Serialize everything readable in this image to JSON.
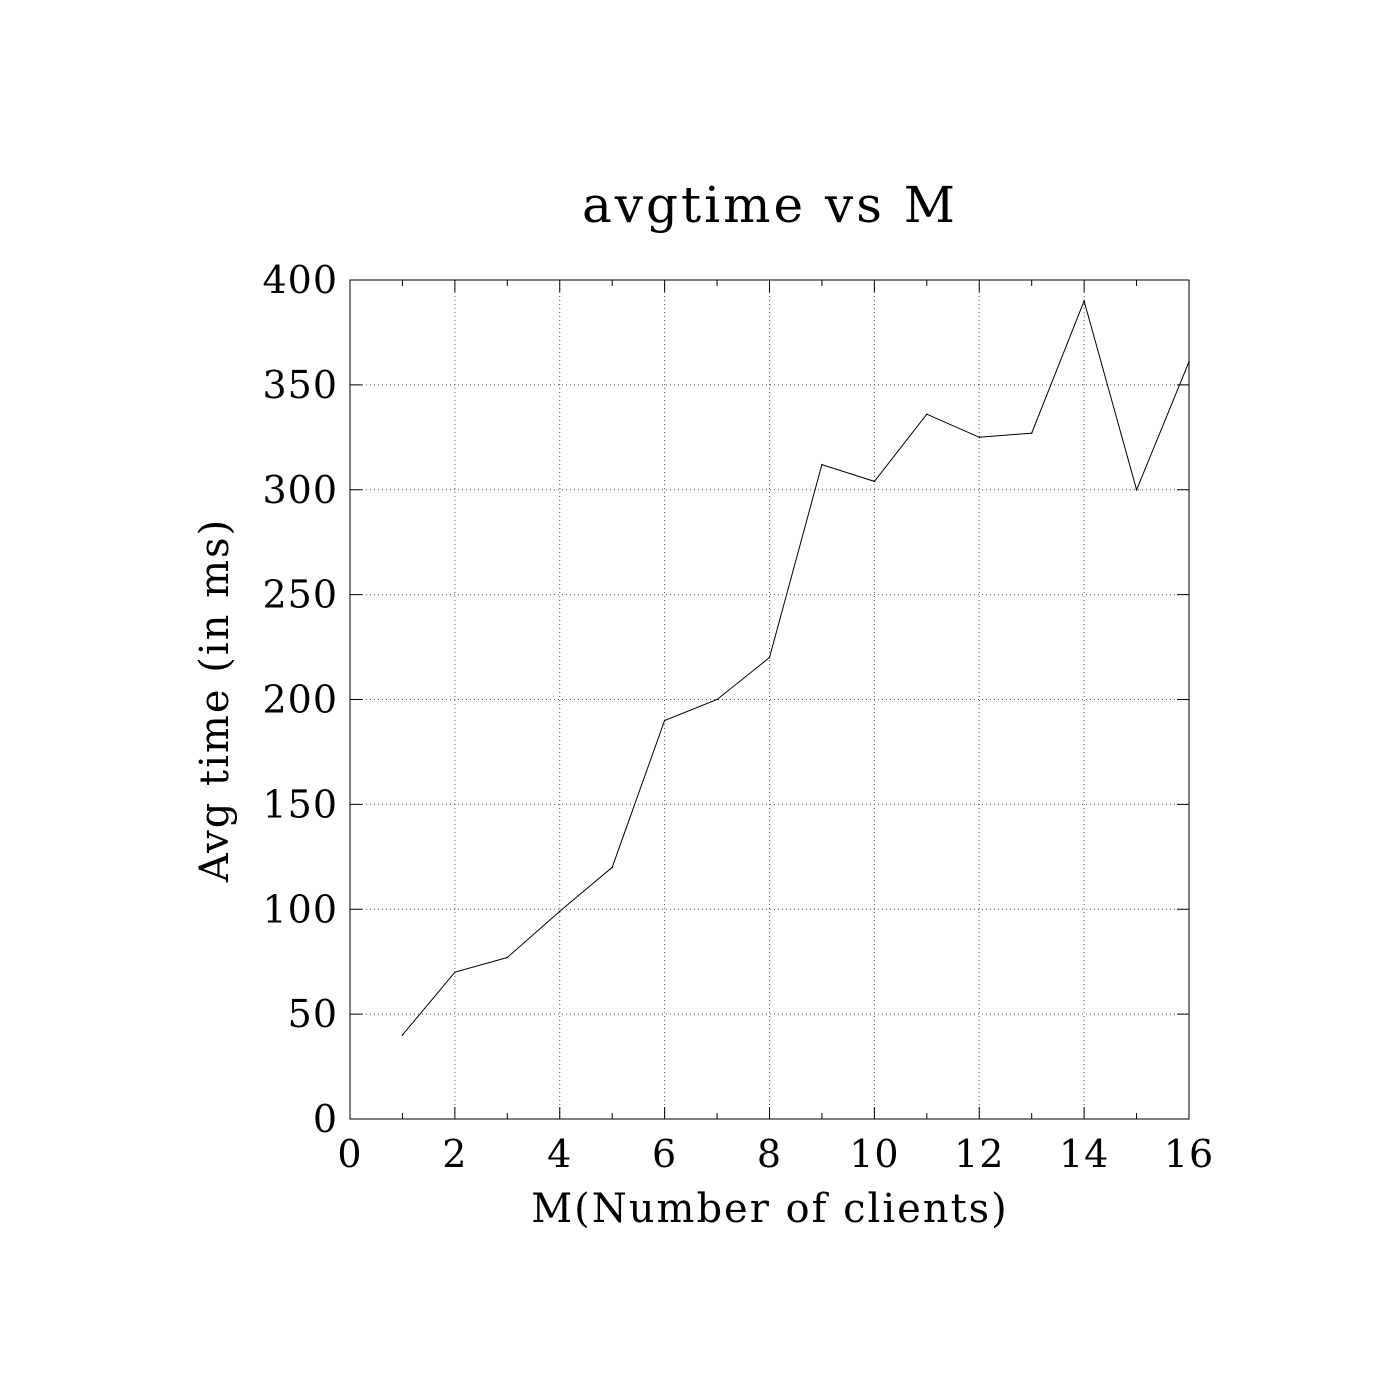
{
  "chart_data": {
    "type": "line",
    "title": "avgtime vs M",
    "xlabel": "M(Number of clients)",
    "ylabel": "Avg time (in ms)",
    "xlim": [
      0,
      16
    ],
    "ylim": [
      0,
      400
    ],
    "x_ticks": [
      0,
      2,
      4,
      6,
      8,
      10,
      12,
      14,
      16
    ],
    "y_ticks": [
      0,
      50,
      100,
      150,
      200,
      250,
      300,
      350,
      400
    ],
    "x_tick_labels": [
      "0",
      "2",
      "4",
      "6",
      "8",
      "10",
      "12",
      "14",
      "16"
    ],
    "y_tick_labels": [
      "0",
      "50",
      "100",
      "150",
      "200",
      "250",
      "300",
      "350",
      "400"
    ],
    "grid": true,
    "series": [
      {
        "x": [
          1,
          2,
          3,
          4,
          5,
          6,
          7,
          8,
          9,
          10,
          11,
          12,
          13,
          14,
          15,
          16
        ],
        "values": [
          40,
          70,
          77,
          99,
          120,
          190,
          200,
          220,
          312,
          304,
          336,
          325,
          327,
          390,
          300,
          361
        ]
      }
    ]
  }
}
